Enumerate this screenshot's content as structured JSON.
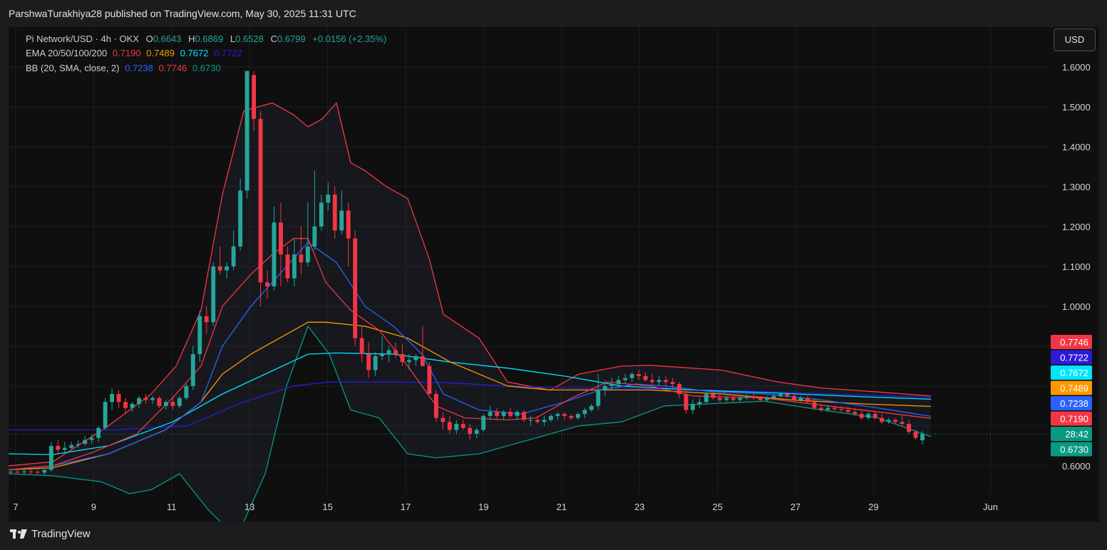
{
  "header": {
    "publisher": "ParshwaTurakhiya28 published on TradingView.com, May 30, 2025 11:31 UTC"
  },
  "legend": {
    "symbol_line": "Pi Network/USD · 4h · OKX",
    "ohlc": {
      "o": "0.6643",
      "h": "0.6869",
      "l": "0.6528",
      "c": "0.6799",
      "change": "+0.0156 (+2.35%)"
    },
    "ema_label": "EMA 20/50/100/200",
    "ema_values": [
      "0.7190",
      "0.7489",
      "0.7672",
      "0.7722"
    ],
    "bb_label": "BB (20, SMA, close, 2)",
    "bb_values": [
      "0.7238",
      "0.7746",
      "0.6730"
    ]
  },
  "currency_button": "USD",
  "brand": "TradingView",
  "colors": {
    "up": "#26a69a",
    "down": "#f23645",
    "ema20": "#f23645",
    "ema50": "#ff9800",
    "ema100": "#00e5ff",
    "ema200": "#2b1bd6",
    "bb_basis": "#2962ff",
    "bb_upper": "#f23645",
    "bb_lower": "#089981"
  },
  "chart_data": {
    "type": "candlestick",
    "title": "Pi Network/USD · 4h · OKX",
    "ylim": [
      0.53,
      1.7
    ],
    "y_ticks": [
      "1.6000",
      "1.5000",
      "1.4000",
      "1.3000",
      "1.2000",
      "1.1000",
      "1.0000",
      "0.6000"
    ],
    "x_ticks": [
      "7",
      "9",
      "11",
      "13",
      "15",
      "17",
      "19",
      "21",
      "23",
      "25",
      "27",
      "29",
      "Jun"
    ],
    "x_tick_days": [
      7,
      9,
      11,
      13,
      15,
      17,
      19,
      21,
      23,
      25,
      27,
      29,
      32
    ],
    "price_labels": [
      {
        "text": "0.7746",
        "value": 0.7746,
        "color": "#f23645"
      },
      {
        "text": "0.7722",
        "value": 0.7722,
        "color": "#2b1bd6"
      },
      {
        "text": "0.7672",
        "value": 0.7672,
        "color": "#00e5ff"
      },
      {
        "text": "0.7489",
        "value": 0.7489,
        "color": "#ff9800"
      },
      {
        "text": "0.7238",
        "value": 0.7238,
        "color": "#2962ff"
      },
      {
        "text": "0.7190",
        "value": 0.719,
        "color": "#f23645"
      },
      {
        "text": "28:42",
        "value": 0.6799,
        "color": "#089981"
      },
      {
        "text": "0.6730",
        "value": 0.673,
        "color": "#089981"
      }
    ],
    "last_close": 0.6799,
    "candles": [
      [
        0.585,
        0.59,
        0.58,
        0.585
      ],
      [
        0.585,
        0.59,
        0.58,
        0.584
      ],
      [
        0.584,
        0.59,
        0.578,
        0.586
      ],
      [
        0.586,
        0.592,
        0.58,
        0.585
      ],
      [
        0.585,
        0.59,
        0.578,
        0.583
      ],
      [
        0.583,
        0.59,
        0.578,
        0.59
      ],
      [
        0.59,
        0.66,
        0.585,
        0.65
      ],
      [
        0.65,
        0.665,
        0.63,
        0.64
      ],
      [
        0.64,
        0.66,
        0.635,
        0.645
      ],
      [
        0.645,
        0.66,
        0.64,
        0.652
      ],
      [
        0.652,
        0.665,
        0.645,
        0.655
      ],
      [
        0.655,
        0.675,
        0.65,
        0.665
      ],
      [
        0.665,
        0.68,
        0.655,
        0.67
      ],
      [
        0.67,
        0.7,
        0.66,
        0.695
      ],
      [
        0.695,
        0.77,
        0.69,
        0.76
      ],
      [
        0.76,
        0.795,
        0.74,
        0.78
      ],
      [
        0.78,
        0.79,
        0.745,
        0.76
      ],
      [
        0.76,
        0.77,
        0.73,
        0.745
      ],
      [
        0.745,
        0.76,
        0.735,
        0.755
      ],
      [
        0.755,
        0.775,
        0.745,
        0.77
      ],
      [
        0.77,
        0.78,
        0.755,
        0.765
      ],
      [
        0.765,
        0.775,
        0.755,
        0.77
      ],
      [
        0.77,
        0.775,
        0.745,
        0.75
      ],
      [
        0.75,
        0.765,
        0.74,
        0.76
      ],
      [
        0.76,
        0.775,
        0.74,
        0.75
      ],
      [
        0.75,
        0.775,
        0.745,
        0.77
      ],
      [
        0.77,
        0.805,
        0.765,
        0.8
      ],
      [
        0.8,
        0.9,
        0.79,
        0.88
      ],
      [
        0.88,
        0.99,
        0.86,
        0.975
      ],
      [
        0.975,
        1.0,
        0.93,
        0.96
      ],
      [
        0.96,
        1.11,
        0.95,
        1.1
      ],
      [
        1.1,
        1.15,
        1.08,
        1.09
      ],
      [
        1.09,
        1.11,
        1.07,
        1.1
      ],
      [
        1.1,
        1.19,
        1.09,
        1.15
      ],
      [
        1.15,
        1.32,
        1.14,
        1.29
      ],
      [
        1.29,
        1.58,
        1.27,
        1.59
      ],
      [
        1.58,
        1.59,
        1.44,
        1.47
      ],
      [
        1.47,
        1.49,
        1.0,
        1.06
      ],
      [
        1.06,
        1.09,
        1.02,
        1.05
      ],
      [
        1.05,
        1.25,
        1.04,
        1.21
      ],
      [
        1.21,
        1.26,
        1.05,
        1.13
      ],
      [
        1.13,
        1.15,
        1.06,
        1.07
      ],
      [
        1.07,
        1.17,
        1.05,
        1.13
      ],
      [
        1.13,
        1.2,
        1.08,
        1.11
      ],
      [
        1.11,
        1.26,
        1.1,
        1.15
      ],
      [
        1.15,
        1.34,
        1.14,
        1.2
      ],
      [
        1.2,
        1.28,
        1.19,
        1.26
      ],
      [
        1.26,
        1.31,
        1.24,
        1.28
      ],
      [
        1.28,
        1.3,
        1.17,
        1.19
      ],
      [
        1.19,
        1.29,
        1.18,
        1.24
      ],
      [
        1.24,
        1.26,
        1.1,
        1.17
      ],
      [
        1.17,
        1.19,
        0.9,
        0.92
      ],
      [
        0.92,
        0.95,
        0.86,
        0.88
      ],
      [
        0.88,
        0.91,
        0.82,
        0.84
      ],
      [
        0.84,
        0.885,
        0.825,
        0.875
      ],
      [
        0.875,
        0.925,
        0.865,
        0.88
      ],
      [
        0.88,
        0.9,
        0.86,
        0.89
      ],
      [
        0.89,
        0.91,
        0.87,
        0.88
      ],
      [
        0.88,
        0.905,
        0.85,
        0.86
      ],
      [
        0.86,
        0.88,
        0.84,
        0.865
      ],
      [
        0.865,
        0.88,
        0.85,
        0.875
      ],
      [
        0.875,
        0.95,
        0.86,
        0.85
      ],
      [
        0.85,
        0.86,
        0.78,
        0.78
      ],
      [
        0.78,
        0.79,
        0.71,
        0.72
      ],
      [
        0.72,
        0.735,
        0.69,
        0.71
      ],
      [
        0.71,
        0.725,
        0.68,
        0.69
      ],
      [
        0.69,
        0.715,
        0.68,
        0.705
      ],
      [
        0.705,
        0.715,
        0.69,
        0.695
      ],
      [
        0.695,
        0.705,
        0.665,
        0.68
      ],
      [
        0.68,
        0.695,
        0.67,
        0.69
      ],
      [
        0.69,
        0.73,
        0.685,
        0.725
      ],
      [
        0.725,
        0.75,
        0.715,
        0.735
      ],
      [
        0.735,
        0.745,
        0.715,
        0.725
      ],
      [
        0.725,
        0.74,
        0.715,
        0.735
      ],
      [
        0.735,
        0.745,
        0.72,
        0.725
      ],
      [
        0.725,
        0.74,
        0.715,
        0.735
      ],
      [
        0.735,
        0.74,
        0.71,
        0.715
      ],
      [
        0.715,
        0.725,
        0.7,
        0.715
      ],
      [
        0.715,
        0.725,
        0.705,
        0.71
      ],
      [
        0.71,
        0.725,
        0.7,
        0.715
      ],
      [
        0.715,
        0.73,
        0.71,
        0.725
      ],
      [
        0.725,
        0.735,
        0.715,
        0.73
      ],
      [
        0.73,
        0.735,
        0.715,
        0.725
      ],
      [
        0.725,
        0.73,
        0.715,
        0.72
      ],
      [
        0.72,
        0.735,
        0.715,
        0.73
      ],
      [
        0.73,
        0.745,
        0.72,
        0.74
      ],
      [
        0.74,
        0.755,
        0.735,
        0.75
      ],
      [
        0.75,
        0.83,
        0.74,
        0.79
      ],
      [
        0.79,
        0.815,
        0.775,
        0.8
      ],
      [
        0.8,
        0.82,
        0.79,
        0.805
      ],
      [
        0.805,
        0.825,
        0.795,
        0.815
      ],
      [
        0.815,
        0.83,
        0.805,
        0.82
      ],
      [
        0.82,
        0.835,
        0.81,
        0.83
      ],
      [
        0.83,
        0.84,
        0.815,
        0.825
      ],
      [
        0.825,
        0.835,
        0.81,
        0.815
      ],
      [
        0.815,
        0.83,
        0.8,
        0.81
      ],
      [
        0.81,
        0.825,
        0.8,
        0.815
      ],
      [
        0.815,
        0.825,
        0.8,
        0.81
      ],
      [
        0.81,
        0.82,
        0.795,
        0.805
      ],
      [
        0.805,
        0.81,
        0.77,
        0.78
      ],
      [
        0.78,
        0.79,
        0.73,
        0.74
      ],
      [
        0.74,
        0.765,
        0.73,
        0.755
      ],
      [
        0.755,
        0.77,
        0.745,
        0.76
      ],
      [
        0.76,
        0.785,
        0.755,
        0.78
      ],
      [
        0.78,
        0.79,
        0.765,
        0.77
      ],
      [
        0.77,
        0.78,
        0.76,
        0.765
      ],
      [
        0.765,
        0.775,
        0.76,
        0.77
      ],
      [
        0.77,
        0.78,
        0.76,
        0.765
      ],
      [
        0.765,
        0.775,
        0.76,
        0.77
      ],
      [
        0.77,
        0.78,
        0.765,
        0.775
      ],
      [
        0.775,
        0.78,
        0.765,
        0.77
      ],
      [
        0.77,
        0.775,
        0.76,
        0.765
      ],
      [
        0.765,
        0.775,
        0.76,
        0.77
      ],
      [
        0.77,
        0.78,
        0.765,
        0.775
      ],
      [
        0.775,
        0.785,
        0.77,
        0.78
      ],
      [
        0.78,
        0.785,
        0.77,
        0.775
      ],
      [
        0.775,
        0.78,
        0.76,
        0.765
      ],
      [
        0.765,
        0.775,
        0.76,
        0.77
      ],
      [
        0.77,
        0.775,
        0.755,
        0.76
      ],
      [
        0.76,
        0.77,
        0.74,
        0.745
      ],
      [
        0.745,
        0.755,
        0.735,
        0.74
      ],
      [
        0.74,
        0.75,
        0.735,
        0.745
      ],
      [
        0.745,
        0.75,
        0.738,
        0.742
      ],
      [
        0.742,
        0.75,
        0.735,
        0.74
      ],
      [
        0.74,
        0.748,
        0.73,
        0.735
      ],
      [
        0.735,
        0.745,
        0.725,
        0.73
      ],
      [
        0.73,
        0.74,
        0.715,
        0.72
      ],
      [
        0.72,
        0.735,
        0.715,
        0.73
      ],
      [
        0.73,
        0.735,
        0.715,
        0.72
      ],
      [
        0.72,
        0.73,
        0.705,
        0.71
      ],
      [
        0.71,
        0.72,
        0.705,
        0.715
      ],
      [
        0.715,
        0.72,
        0.705,
        0.71
      ],
      [
        0.71,
        0.725,
        0.7,
        0.705
      ],
      [
        0.705,
        0.715,
        0.68,
        0.685
      ],
      [
        0.685,
        0.69,
        0.665,
        0.67
      ],
      [
        0.664,
        0.687,
        0.653,
        0.68
      ]
    ],
    "ema20": [
      [
        0,
        0.59
      ],
      [
        62,
        0.6
      ],
      [
        120,
        0.635
      ],
      [
        180,
        0.68
      ],
      [
        230,
        0.77
      ],
      [
        270,
        0.85
      ],
      [
        300,
        1.0
      ],
      [
        340,
        1.08
      ],
      [
        370,
        1.13
      ],
      [
        400,
        1.17
      ],
      [
        420,
        1.17
      ],
      [
        445,
        1.06
      ],
      [
        480,
        0.99
      ],
      [
        520,
        0.94
      ],
      [
        560,
        0.85
      ],
      [
        600,
        0.75
      ],
      [
        640,
        0.72
      ],
      [
        700,
        0.715
      ],
      [
        740,
        0.72
      ],
      [
        790,
        0.77
      ],
      [
        840,
        0.81
      ],
      [
        900,
        0.8
      ],
      [
        960,
        0.775
      ],
      [
        1060,
        0.77
      ],
      [
        1140,
        0.752
      ],
      [
        1220,
        0.735
      ],
      [
        1294,
        0.719
      ]
    ],
    "ema50": [
      [
        0,
        0.59
      ],
      [
        62,
        0.595
      ],
      [
        140,
        0.63
      ],
      [
        220,
        0.69
      ],
      [
        270,
        0.76
      ],
      [
        300,
        0.83
      ],
      [
        340,
        0.88
      ],
      [
        380,
        0.92
      ],
      [
        420,
        0.96
      ],
      [
        445,
        0.96
      ],
      [
        500,
        0.95
      ],
      [
        560,
        0.92
      ],
      [
        620,
        0.86
      ],
      [
        700,
        0.8
      ],
      [
        760,
        0.79
      ],
      [
        840,
        0.79
      ],
      [
        900,
        0.79
      ],
      [
        1000,
        0.78
      ],
      [
        1100,
        0.765
      ],
      [
        1200,
        0.755
      ],
      [
        1294,
        0.749
      ]
    ],
    "ema100": [
      [
        0,
        0.63
      ],
      [
        62,
        0.628
      ],
      [
        140,
        0.65
      ],
      [
        230,
        0.71
      ],
      [
        300,
        0.78
      ],
      [
        360,
        0.83
      ],
      [
        420,
        0.88
      ],
      [
        460,
        0.883
      ],
      [
        540,
        0.88
      ],
      [
        620,
        0.86
      ],
      [
        700,
        0.845
      ],
      [
        780,
        0.825
      ],
      [
        860,
        0.8
      ],
      [
        960,
        0.79
      ],
      [
        1080,
        0.782
      ],
      [
        1200,
        0.773
      ],
      [
        1294,
        0.767
      ]
    ],
    "ema200": [
      [
        0,
        0.69
      ],
      [
        62,
        0.69
      ],
      [
        150,
        0.69
      ],
      [
        250,
        0.7
      ],
      [
        330,
        0.76
      ],
      [
        400,
        0.8
      ],
      [
        450,
        0.81
      ],
      [
        540,
        0.81
      ],
      [
        620,
        0.808
      ],
      [
        700,
        0.8
      ],
      [
        780,
        0.795
      ],
      [
        860,
        0.795
      ],
      [
        960,
        0.79
      ],
      [
        1080,
        0.785
      ],
      [
        1200,
        0.777
      ],
      [
        1294,
        0.772
      ]
    ],
    "bb_basis": [
      [
        0,
        0.59
      ],
      [
        62,
        0.6
      ],
      [
        140,
        0.63
      ],
      [
        220,
        0.69
      ],
      [
        270,
        0.76
      ],
      [
        300,
        0.9
      ],
      [
        340,
        1.0
      ],
      [
        380,
        1.08
      ],
      [
        420,
        1.16
      ],
      [
        460,
        1.11
      ],
      [
        500,
        1.0
      ],
      [
        540,
        0.95
      ],
      [
        580,
        0.88
      ],
      [
        610,
        0.78
      ],
      [
        660,
        0.74
      ],
      [
        720,
        0.73
      ],
      [
        780,
        0.76
      ],
      [
        830,
        0.79
      ],
      [
        880,
        0.805
      ],
      [
        920,
        0.8
      ],
      [
        990,
        0.785
      ],
      [
        1060,
        0.78
      ],
      [
        1140,
        0.765
      ],
      [
        1220,
        0.745
      ],
      [
        1294,
        0.724
      ]
    ],
    "bb_upper": [
      [
        0,
        0.6
      ],
      [
        62,
        0.61
      ],
      [
        140,
        0.7
      ],
      [
        200,
        0.78
      ],
      [
        235,
        0.85
      ],
      [
        270,
        0.99
      ],
      [
        300,
        1.28
      ],
      [
        330,
        1.49
      ],
      [
        350,
        1.5
      ],
      [
        370,
        1.51
      ],
      [
        400,
        1.48
      ],
      [
        420,
        1.45
      ],
      [
        440,
        1.47
      ],
      [
        460,
        1.51
      ],
      [
        480,
        1.36
      ],
      [
        500,
        1.34
      ],
      [
        530,
        1.3
      ],
      [
        560,
        1.27
      ],
      [
        590,
        1.12
      ],
      [
        610,
        0.98
      ],
      [
        660,
        0.92
      ],
      [
        700,
        0.81
      ],
      [
        760,
        0.79
      ],
      [
        800,
        0.83
      ],
      [
        860,
        0.85
      ],
      [
        900,
        0.852
      ],
      [
        1000,
        0.84
      ],
      [
        1080,
        0.81
      ],
      [
        1140,
        0.795
      ],
      [
        1220,
        0.785
      ],
      [
        1294,
        0.775
      ]
    ],
    "bb_lower": [
      [
        0,
        0.58
      ],
      [
        62,
        0.575
      ],
      [
        130,
        0.56
      ],
      [
        170,
        0.53
      ],
      [
        200,
        0.54
      ],
      [
        240,
        0.58
      ],
      [
        280,
        0.49
      ],
      [
        320,
        0.42
      ],
      [
        360,
        0.58
      ],
      [
        390,
        0.8
      ],
      [
        420,
        0.95
      ],
      [
        450,
        0.88
      ],
      [
        480,
        0.74
      ],
      [
        520,
        0.72
      ],
      [
        560,
        0.63
      ],
      [
        600,
        0.62
      ],
      [
        660,
        0.63
      ],
      [
        720,
        0.66
      ],
      [
        800,
        0.7
      ],
      [
        860,
        0.71
      ],
      [
        920,
        0.75
      ],
      [
        980,
        0.755
      ],
      [
        1060,
        0.762
      ],
      [
        1140,
        0.74
      ],
      [
        1220,
        0.72
      ],
      [
        1294,
        0.673
      ]
    ]
  }
}
